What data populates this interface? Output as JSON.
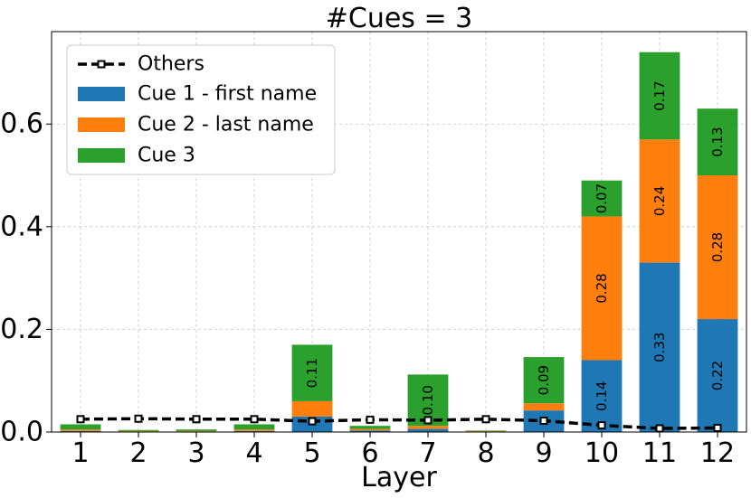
{
  "chart_data": {
    "type": "bar",
    "stacked": true,
    "title": "#Cues = 3",
    "xlabel": "Layer",
    "ylabel": "",
    "categories": [
      "1",
      "2",
      "3",
      "4",
      "5",
      "6",
      "7",
      "8",
      "9",
      "10",
      "11",
      "12"
    ],
    "ylim": [
      0,
      0.78
    ],
    "yticks": [
      0.0,
      0.2,
      0.4,
      0.6
    ],
    "ytick_labels": [
      "0.0",
      "0.2",
      "0.4",
      "0.6"
    ],
    "grid": true,
    "legend_position": "top-left",
    "series": [
      {
        "name": "Cue 1 - first name",
        "color": "#1f77b4",
        "values": [
          0.002,
          0.001,
          0.001,
          0.002,
          0.03,
          0.003,
          0.006,
          0.001,
          0.042,
          0.14,
          0.33,
          0.22
        ],
        "labels": [
          "",
          "",
          "",
          "",
          "",
          "",
          "",
          "",
          "",
          "0.14",
          "0.33",
          "0.22"
        ]
      },
      {
        "name": "Cue 2 - last name",
        "color": "#ff7f0e",
        "values": [
          0.003,
          0.001,
          0.001,
          0.003,
          0.03,
          0.003,
          0.006,
          0.001,
          0.014,
          0.28,
          0.24,
          0.28
        ],
        "labels": [
          "",
          "",
          "",
          "",
          "",
          "",
          "",
          "",
          "",
          "0.28",
          "0.24",
          "0.28"
        ]
      },
      {
        "name": "Cue 3",
        "color": "#2ca02c",
        "values": [
          0.01,
          0.002,
          0.003,
          0.01,
          0.11,
          0.006,
          0.1,
          0.001,
          0.09,
          0.07,
          0.17,
          0.13
        ],
        "labels": [
          "",
          "",
          "",
          "",
          "0.11",
          "",
          "0.10",
          "",
          "0.09",
          "0.07",
          "0.17",
          "0.13"
        ]
      }
    ],
    "line_series": {
      "name": "Others",
      "color": "#000000",
      "style": "dashed",
      "values": [
        0.025,
        0.026,
        0.025,
        0.025,
        0.021,
        0.024,
        0.023,
        0.025,
        0.022,
        0.013,
        0.007,
        0.008
      ]
    }
  }
}
